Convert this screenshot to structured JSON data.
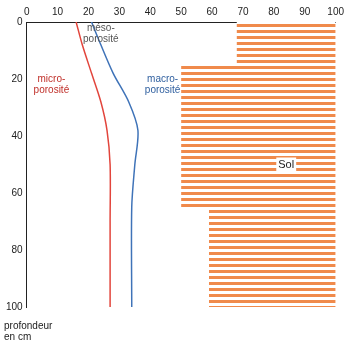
{
  "chart_data": {
    "type": "line",
    "y_label": "profondeur\nen cm",
    "xlim": [
      0,
      100
    ],
    "xticks": [
      0,
      10,
      20,
      30,
      40,
      50,
      60,
      70,
      80,
      90,
      100
    ],
    "ylim": [
      0,
      100
    ],
    "yticks": [
      0,
      20,
      40,
      60,
      80,
      100
    ],
    "grid": false,
    "series": [
      {
        "name": "micro-porosité",
        "type": "line",
        "color": "#e2453c",
        "x": [
          16,
          18,
          21,
          24,
          26,
          27,
          27,
          27
        ],
        "y": [
          0,
          8,
          18,
          28,
          38,
          50,
          70,
          100
        ]
      },
      {
        "name": "macro-porosité",
        "type": "line",
        "color": "#3f73b8",
        "x": [
          21,
          24,
          28,
          33,
          36,
          35,
          34,
          34
        ],
        "y": [
          0,
          8,
          18,
          28,
          38,
          50,
          65,
          100
        ]
      },
      {
        "name": "Sol",
        "type": "area",
        "color": "#f08a4b",
        "x": [
          68,
          68,
          50,
          50,
          59,
          59
        ],
        "y": [
          0,
          15,
          15,
          65,
          65,
          100
        ]
      }
    ],
    "annotations": [
      {
        "text": "micro-\nporosité",
        "color": "#c0302a"
      },
      {
        "text": "méso-\nporosité",
        "color": "#555555"
      },
      {
        "text": "macro-\nporosité",
        "color": "#2f5f9f"
      }
    ]
  }
}
